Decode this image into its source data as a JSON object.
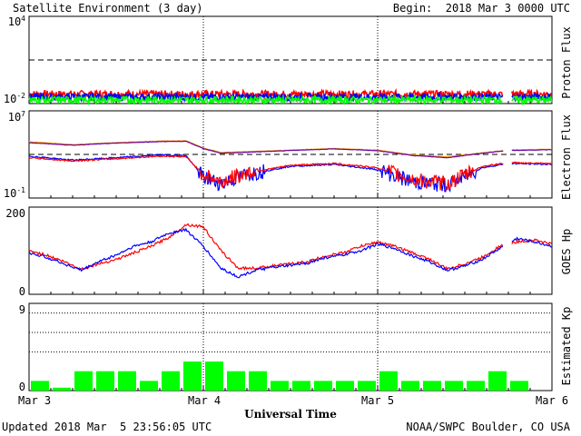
{
  "header": {
    "title": "Satellite Environment (3 day)",
    "begin": "Begin:  2018 Mar 3 0000 UTC"
  },
  "footer": {
    "updated": "Updated 2018 Mar  5 23:56:05 UTC",
    "credit": "NOAA/SWPC Boulder, CO USA"
  },
  "x_axis": {
    "title": "Universal Time",
    "ticks": [
      "Mar 3",
      "Mar 4",
      "Mar 5",
      "Mar 6"
    ]
  },
  "colors": {
    "red": "#ff0000",
    "blue": "#0000ff",
    "green": "#00ff00",
    "orange": "#ffa500",
    "purple": "#6a00a0"
  },
  "chart_data": [
    {
      "type": "line",
      "ylabel": "Proton Flux",
      "scale": "log",
      "ylim": [
        0.01,
        10000
      ],
      "ytick_labels": {
        "top_base": "10",
        "top_exp": "4",
        "bottom_base": "10",
        "bottom_exp": "-2"
      },
      "threshold": 10,
      "x_days": [
        0,
        3
      ],
      "series": [
        {
          "color": "red",
          "level": 0.045
        },
        {
          "color": "blue",
          "level": 0.028
        },
        {
          "color": "green",
          "level": 0.018
        }
      ]
    },
    {
      "type": "line",
      "ylabel": "Electron Flux",
      "scale": "log",
      "ylim": [
        0.1,
        10000000
      ],
      "ytick_labels": {
        "top_base": "10",
        "top_exp": "7",
        "bottom_base": "10",
        "bottom_exp": "-1"
      },
      "threshold": 1000,
      "x": [
        0,
        0.25,
        0.5,
        0.75,
        0.9,
        1.0,
        1.1,
        1.25,
        1.5,
        1.75,
        2.0,
        2.2,
        2.4,
        2.6,
        2.75,
        3.0
      ],
      "series": [
        {
          "color": "orange",
          "values": [
            15000,
            8000,
            12000,
            17000,
            18000,
            4000,
            1500,
            1800,
            2500,
            3500,
            2500,
            900,
            600,
            1400,
            2500,
            3000
          ]
        },
        {
          "color": "purple",
          "values": [
            12000,
            7000,
            11000,
            15000,
            16000,
            3500,
            1300,
            1600,
            2300,
            3200,
            2200,
            800,
            500,
            1300,
            2300,
            2700
          ]
        },
        {
          "color": "blue",
          "values": [
            700,
            300,
            500,
            900,
            800,
            8,
            2,
            15,
            80,
            120,
            40,
            3,
            1.5,
            60,
            150,
            120
          ]
        },
        {
          "color": "red",
          "values": [
            500,
            250,
            400,
            700,
            600,
            15,
            3,
            20,
            100,
            150,
            60,
            5,
            2,
            80,
            180,
            140
          ]
        }
      ]
    },
    {
      "type": "line",
      "ylabel": "GOES Hp",
      "ylim": [
        0,
        200
      ],
      "ytick_labels": [
        "0",
        "200"
      ],
      "x": [
        0,
        0.1,
        0.2,
        0.3,
        0.4,
        0.5,
        0.6,
        0.7,
        0.8,
        0.9,
        1.0,
        1.1,
        1.2,
        1.3,
        1.4,
        1.5,
        1.6,
        1.7,
        1.8,
        1.9,
        2.0,
        2.1,
        2.2,
        2.3,
        2.4,
        2.5,
        2.6,
        2.7,
        2.8,
        2.9,
        3.0
      ],
      "series": [
        {
          "color": "red",
          "values": [
            100,
            90,
            75,
            58,
            70,
            80,
            95,
            110,
            130,
            160,
            155,
            100,
            60,
            60,
            65,
            70,
            75,
            88,
            95,
            110,
            120,
            110,
            95,
            80,
            58,
            70,
            85,
            110,
            120,
            125,
            115
          ]
        },
        {
          "color": "blue",
          "values": [
            95,
            85,
            70,
            55,
            75,
            90,
            110,
            120,
            140,
            148,
            110,
            60,
            40,
            55,
            62,
            66,
            72,
            84,
            90,
            100,
            115,
            105,
            88,
            74,
            55,
            65,
            80,
            105,
            128,
            120,
            110
          ]
        }
      ]
    },
    {
      "type": "bar",
      "ylabel": "Estimated Kp",
      "ylim": [
        0,
        9
      ],
      "ytick_labels": [
        "0",
        "9"
      ],
      "bar_width_hours": 3,
      "values": [
        1,
        0.3,
        2,
        2,
        2,
        1,
        2,
        3,
        3,
        2,
        2,
        1,
        1,
        1,
        1,
        1,
        2,
        1,
        1,
        1,
        1,
        2,
        1
      ],
      "gridlines": [
        4,
        6,
        8
      ]
    }
  ]
}
